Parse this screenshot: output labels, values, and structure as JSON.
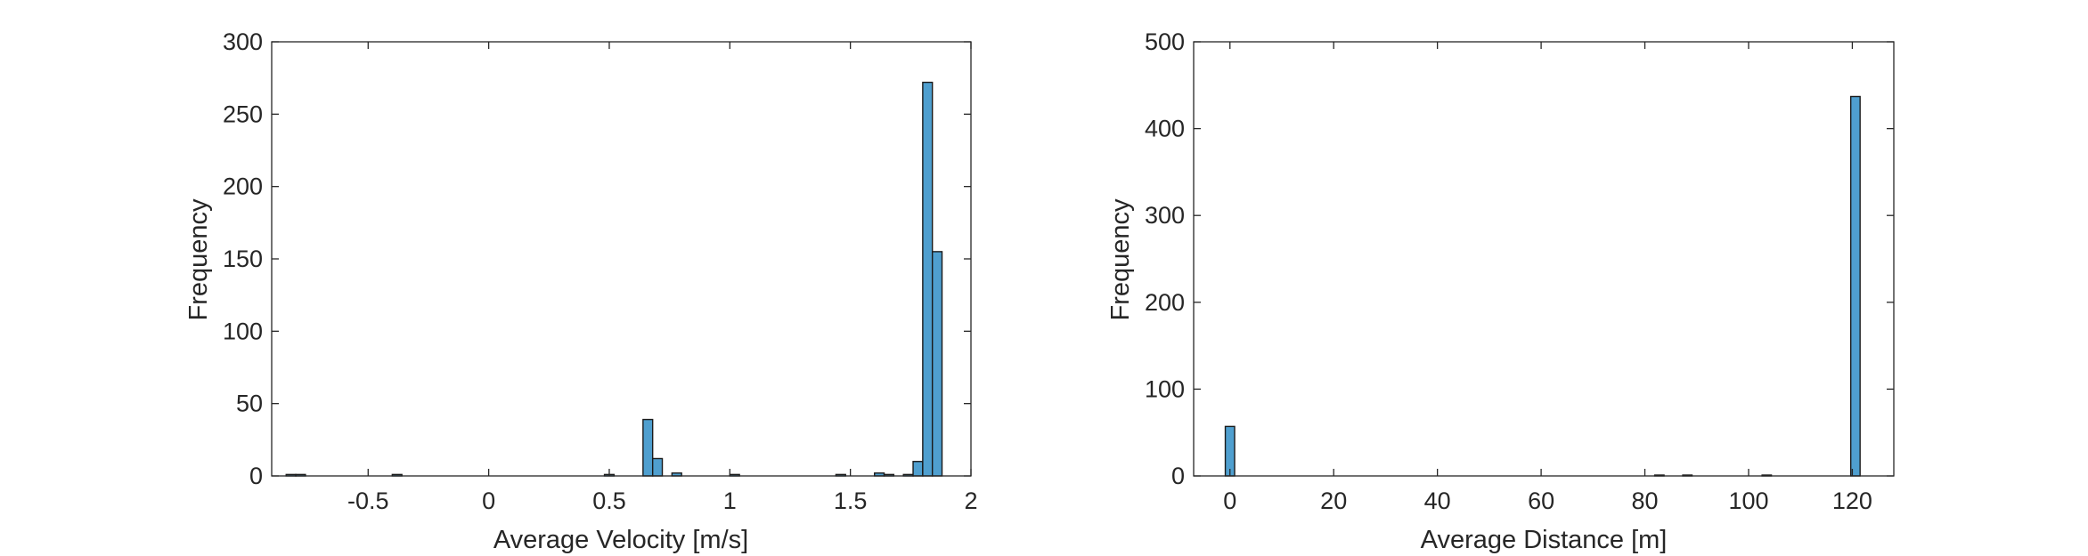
{
  "chart_data": [
    {
      "type": "bar",
      "xlabel": "Average Velocity [m/s]",
      "ylabel": "Frequency",
      "xlim": [
        -0.9,
        2.0
      ],
      "ylim": [
        0,
        300
      ],
      "xticks": [
        -0.5,
        0,
        0.5,
        1,
        1.5,
        2
      ],
      "xtick_labels": [
        "-0.5",
        "0",
        "0.5",
        "1",
        "1.5",
        "2"
      ],
      "yticks": [
        0,
        50,
        100,
        150,
        200,
        250,
        300
      ],
      "ytick_labels": [
        "0",
        "50",
        "100",
        "150",
        "200",
        "250",
        "300"
      ],
      "bar_color": "#4f9fcf",
      "edge_color": "#1a1a1a",
      "grid": false,
      "bins": [
        {
          "x0": -0.84,
          "x1": -0.8,
          "count": 1
        },
        {
          "x0": -0.8,
          "x1": -0.76,
          "count": 1
        },
        {
          "x0": -0.4,
          "x1": -0.36,
          "count": 1
        },
        {
          "x0": 0.48,
          "x1": 0.52,
          "count": 1
        },
        {
          "x0": 0.64,
          "x1": 0.68,
          "count": 39
        },
        {
          "x0": 0.68,
          "x1": 0.72,
          "count": 12
        },
        {
          "x0": 0.76,
          "x1": 0.8,
          "count": 2
        },
        {
          "x0": 1.0,
          "x1": 1.04,
          "count": 1
        },
        {
          "x0": 1.44,
          "x1": 1.48,
          "count": 1
        },
        {
          "x0": 1.6,
          "x1": 1.64,
          "count": 2
        },
        {
          "x0": 1.64,
          "x1": 1.68,
          "count": 1
        },
        {
          "x0": 1.72,
          "x1": 1.76,
          "count": 1
        },
        {
          "x0": 1.76,
          "x1": 1.8,
          "count": 10
        },
        {
          "x0": 1.8,
          "x1": 1.84,
          "count": 272
        },
        {
          "x0": 1.84,
          "x1": 1.88,
          "count": 155
        }
      ]
    },
    {
      "type": "bar",
      "xlabel": "Average Distance [m]",
      "ylabel": "Frequency",
      "xlim": [
        -7,
        128
      ],
      "ylim": [
        0,
        500
      ],
      "xticks": [
        0,
        20,
        40,
        60,
        80,
        100,
        120
      ],
      "xtick_labels": [
        "0",
        "20",
        "40",
        "60",
        "80",
        "100",
        "120"
      ],
      "yticks": [
        0,
        100,
        200,
        300,
        400,
        500
      ],
      "ytick_labels": [
        "0",
        "100",
        "200",
        "300",
        "400",
        "500"
      ],
      "bar_color": "#4f9fcf",
      "edge_color": "#1a1a1a",
      "grid": false,
      "bins": [
        {
          "x0": -0.9,
          "x1": 0.9,
          "count": 57
        },
        {
          "x0": 81.9,
          "x1": 83.7,
          "count": 1
        },
        {
          "x0": 87.3,
          "x1": 89.1,
          "count": 1
        },
        {
          "x0": 102.6,
          "x1": 104.4,
          "count": 1
        },
        {
          "x0": 119.7,
          "x1": 121.5,
          "count": 437
        }
      ]
    }
  ]
}
